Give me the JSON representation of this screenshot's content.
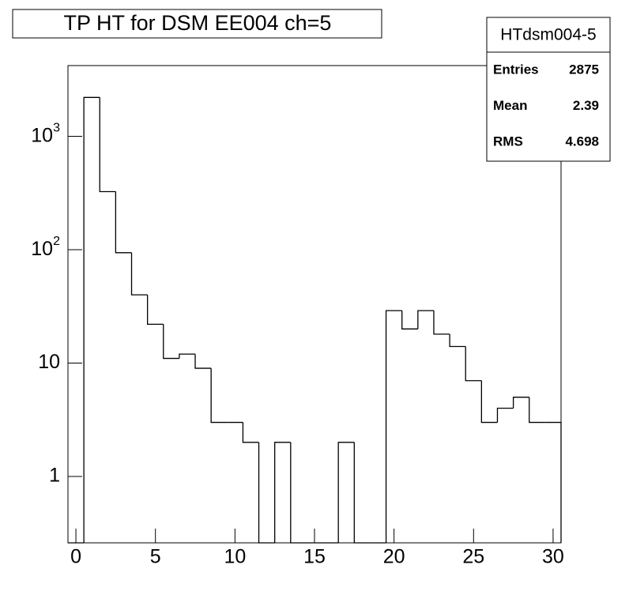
{
  "chart_data": {
    "type": "histogram",
    "title": "TP HT for DSM EE004 ch=5",
    "bins": [
      -0.5,
      0.5,
      1.5,
      2.5,
      3.5,
      4.5,
      5.5,
      6.5,
      7.5,
      8.5,
      9.5,
      10.5,
      11.5,
      12.5,
      13.5,
      14.5,
      15.5,
      16.5,
      17.5,
      18.5,
      19.5,
      20.5,
      21.5,
      22.5,
      23.5,
      24.5,
      25.5,
      26.5,
      27.5,
      28.5,
      29.5,
      30.5
    ],
    "values": [
      0,
      2200,
      325,
      94,
      40,
      22,
      11,
      12,
      9,
      3,
      3,
      2,
      0,
      2,
      0,
      0,
      0,
      2,
      0,
      0,
      29,
      20,
      29,
      18,
      14,
      7,
      3,
      4,
      5,
      3,
      3
    ],
    "color": "#000000",
    "xlim": [
      -0.5,
      30.5
    ],
    "xticks": [
      0,
      5,
      10,
      15,
      20,
      25,
      30
    ],
    "ylim": [
      0.26,
      4200
    ],
    "yticks": [
      1,
      10,
      {
        "value": 100,
        "label": "10^2"
      },
      {
        "value": 1000,
        "label": "10^3"
      }
    ],
    "log_y": true,
    "stats": {
      "name": "HTdsm004-5",
      "rows": [
        {
          "label": "Entries",
          "value": 2875
        },
        {
          "label": "Mean",
          "value": 2.39
        },
        {
          "label": "RMS",
          "value": 4.698
        }
      ]
    }
  }
}
